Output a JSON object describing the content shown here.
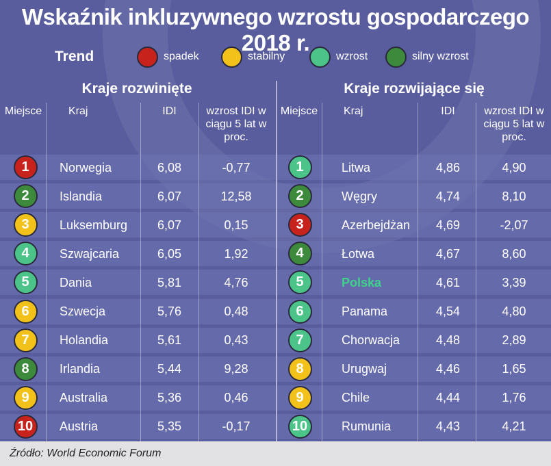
{
  "title": "Wskaźnik inkluzywnego wzrostu gospodarczego 2018 r.",
  "source": "Źródło: World Economic Forum",
  "legend": {
    "title": "Trend",
    "items": [
      {
        "label": "spadek",
        "color": "#c8221c"
      },
      {
        "label": "stabilny",
        "color": "#f2c21a"
      },
      {
        "label": "wzrost",
        "color": "#4cc489"
      },
      {
        "label": "silny wzrost",
        "color": "#3d8a3c"
      }
    ]
  },
  "highlight_color": "#3fd28a",
  "chart_data": {
    "type": "table",
    "title": "Wskaźnik inkluzywnego wzrostu gospodarczego 2018 r.",
    "columns": [
      "Miejsce",
      "Kraj",
      "IDI",
      "wzrost IDI w ciągu 5 lat w proc."
    ],
    "tables": [
      {
        "name": "Kraje rozwinięte",
        "rows": [
          {
            "rank": "1",
            "country": "Norwegia",
            "idi": "6,08",
            "growth": "-0,77",
            "trend": "spadek"
          },
          {
            "rank": "2",
            "country": "Islandia",
            "idi": "6,07",
            "growth": "12,58",
            "trend": "silny wzrost"
          },
          {
            "rank": "3",
            "country": "Luksemburg",
            "idi": "6,07",
            "growth": "0,15",
            "trend": "stabilny"
          },
          {
            "rank": "4",
            "country": "Szwajcaria",
            "idi": "6,05",
            "growth": "1,92",
            "trend": "wzrost"
          },
          {
            "rank": "5",
            "country": "Dania",
            "idi": "5,81",
            "growth": "4,76",
            "trend": "wzrost"
          },
          {
            "rank": "6",
            "country": "Szwecja",
            "idi": "5,76",
            "growth": "0,48",
            "trend": "stabilny"
          },
          {
            "rank": "7",
            "country": "Holandia",
            "idi": "5,61",
            "growth": "0,43",
            "trend": "stabilny"
          },
          {
            "rank": "8",
            "country": "Irlandia",
            "idi": "5,44",
            "growth": "9,28",
            "trend": "silny wzrost"
          },
          {
            "rank": "9",
            "country": "Australia",
            "idi": "5,36",
            "growth": "0,46",
            "trend": "stabilny"
          },
          {
            "rank": "10",
            "country": "Austria",
            "idi": "5,35",
            "growth": "-0,17",
            "trend": "spadek"
          }
        ]
      },
      {
        "name": "Kraje rozwijające się",
        "rows": [
          {
            "rank": "1",
            "country": "Litwa",
            "idi": "4,86",
            "growth": "4,90",
            "trend": "wzrost"
          },
          {
            "rank": "2",
            "country": "Węgry",
            "idi": "4,74",
            "growth": "8,10",
            "trend": "silny wzrost"
          },
          {
            "rank": "3",
            "country": "Azerbejdżan",
            "idi": "4,69",
            "growth": "-2,07",
            "trend": "spadek"
          },
          {
            "rank": "4",
            "country": "Łotwa",
            "idi": "4,67",
            "growth": "8,60",
            "trend": "silny wzrost"
          },
          {
            "rank": "5",
            "country": "Polska",
            "idi": "4,61",
            "growth": "3,39",
            "trend": "wzrost",
            "highlight": true
          },
          {
            "rank": "6",
            "country": "Panama",
            "idi": "4,54",
            "growth": "4,80",
            "trend": "wzrost"
          },
          {
            "rank": "7",
            "country": "Chorwacja",
            "idi": "4,48",
            "growth": "2,89",
            "trend": "wzrost"
          },
          {
            "rank": "8",
            "country": "Urugwaj",
            "idi": "4,46",
            "growth": "1,65",
            "trend": "stabilny"
          },
          {
            "rank": "9",
            "country": "Chile",
            "idi": "4,44",
            "growth": "1,76",
            "trend": "stabilny"
          },
          {
            "rank": "10",
            "country": "Rumunia",
            "idi": "4,43",
            "growth": "4,21",
            "trend": "wzrost"
          }
        ]
      }
    ]
  }
}
